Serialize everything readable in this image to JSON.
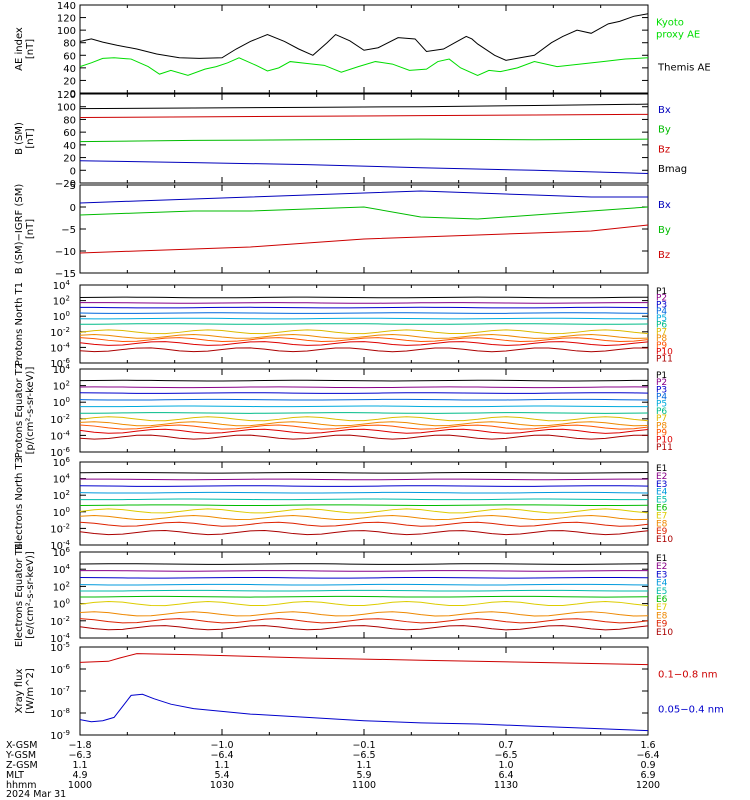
{
  "chart_data": [
    {
      "type": "line",
      "ylabel": "AE index [nT]",
      "ylim": [
        0,
        140
      ],
      "yticks": [
        "0",
        "20",
        "40",
        "60",
        "80",
        "100",
        "120",
        "140"
      ],
      "yscale": "linear",
      "legend": [
        {
          "text": "Kyoto proxy AE",
          "color": "#00dd00"
        },
        {
          "text": "Themis AE",
          "color": "#000000"
        }
      ],
      "series": [
        {
          "name": "Themis AE",
          "color": "#000000",
          "x": [
            0,
            4,
            8,
            13,
            20,
            27,
            35,
            42,
            50,
            55,
            60,
            66,
            72,
            77,
            82,
            87,
            90,
            95,
            100,
            105,
            112,
            118,
            122,
            128,
            132,
            136,
            138,
            140,
            146,
            150,
            155,
            160,
            166,
            170,
            175,
            180,
            186,
            190,
            195,
            200
          ],
          "y": [
            82,
            86,
            81,
            76,
            70,
            62,
            56,
            55,
            56,
            70,
            82,
            93,
            82,
            70,
            60,
            80,
            93,
            83,
            68,
            72,
            88,
            86,
            66,
            70,
            80,
            90,
            86,
            78,
            60,
            52,
            56,
            60,
            80,
            90,
            100,
            95,
            110,
            114,
            122,
            126
          ]
        },
        {
          "name": "Kyoto proxy AE",
          "color": "#00dd00",
          "x": [
            0,
            4,
            8,
            12,
            18,
            24,
            28,
            32,
            38,
            44,
            48,
            52,
            56,
            62,
            66,
            70,
            74,
            80,
            86,
            92,
            98,
            104,
            110,
            116,
            122,
            126,
            130,
            134,
            140,
            144,
            148,
            154,
            160,
            168,
            176,
            184,
            192,
            200
          ],
          "y": [
            42,
            48,
            55,
            56,
            54,
            42,
            30,
            36,
            28,
            38,
            42,
            48,
            56,
            44,
            35,
            40,
            50,
            47,
            44,
            33,
            42,
            50,
            46,
            36,
            38,
            50,
            54,
            40,
            28,
            36,
            34,
            40,
            50,
            42,
            46,
            50,
            54,
            56
          ]
        }
      ]
    },
    {
      "type": "line",
      "ylabel": "B (SM) [nT]",
      "ylim": [
        -20,
        120
      ],
      "yticks": [
        "−20",
        "0",
        "20",
        "40",
        "60",
        "80",
        "100",
        "120"
      ],
      "yscale": "linear",
      "legend": [
        {
          "text": "Bx",
          "color": "#0000bb"
        },
        {
          "text": "By",
          "color": "#00bb00"
        },
        {
          "text": "Bz",
          "color": "#cc0000"
        },
        {
          "text": "Bmag",
          "color": "#000000"
        }
      ],
      "series": [
        {
          "name": "Bmag",
          "color": "#000000",
          "x": [
            0,
            40,
            80,
            120,
            160,
            200
          ],
          "y": [
            97,
            98,
            99,
            100,
            102,
            104
          ]
        },
        {
          "name": "Bz",
          "color": "#cc0000",
          "x": [
            0,
            40,
            80,
            120,
            160,
            200
          ],
          "y": [
            83,
            84,
            85,
            86,
            87,
            88
          ]
        },
        {
          "name": "By",
          "color": "#00bb00",
          "x": [
            0,
            40,
            80,
            120,
            160,
            200
          ],
          "y": [
            45,
            47,
            48,
            49,
            48,
            49
          ]
        },
        {
          "name": "Bx",
          "color": "#0000bb",
          "x": [
            0,
            40,
            80,
            120,
            160,
            200
          ],
          "y": [
            15,
            12,
            9,
            4,
            0,
            -5
          ]
        }
      ]
    },
    {
      "type": "line",
      "ylabel": "B (SM)−IGRF (SM) [nT]",
      "ylim": [
        -15,
        7
      ],
      "yticks": [
        "−15",
        "−10",
        "−5",
        "0",
        "5"
      ],
      "yscale": "linear",
      "legend": [
        {
          "text": "Bx",
          "color": "#0000bb"
        },
        {
          "text": "By",
          "color": "#00bb00"
        },
        {
          "text": "Bz",
          "color": "#cc0000"
        }
      ],
      "series": [
        {
          "name": "Bx",
          "color": "#0000bb",
          "x": [
            0,
            20,
            40,
            60,
            80,
            100,
            120,
            140,
            160,
            180,
            200
          ],
          "y": [
            2.5,
            3,
            3.5,
            4,
            4.5,
            5,
            5.5,
            5,
            4.5,
            4,
            4
          ]
        },
        {
          "name": "By",
          "color": "#00bb00",
          "x": [
            0,
            20,
            40,
            60,
            80,
            100,
            120,
            140,
            160,
            180,
            200
          ],
          "y": [
            -0.5,
            0,
            0.5,
            0.5,
            1,
            1.5,
            -1,
            -1.5,
            -0.5,
            0.5,
            1.5
          ]
        },
        {
          "name": "Bz",
          "color": "#cc0000",
          "x": [
            0,
            20,
            40,
            60,
            80,
            100,
            120,
            140,
            160,
            180,
            200
          ],
          "y": [
            -10,
            -9.5,
            -9,
            -8.5,
            -7.5,
            -6.5,
            -6,
            -5.5,
            -5,
            -4.5,
            -3
          ]
        }
      ]
    },
    {
      "type": "line",
      "ylabel": "Protons North T1",
      "ylim": [
        -6,
        4
      ],
      "yticks": [
        "10^-6",
        "10^-4",
        "10^-2",
        "10^0",
        "10^2",
        "10^4"
      ],
      "yscale": "log",
      "legend": [
        {
          "text": "P1",
          "color": "#000000"
        },
        {
          "text": "P2",
          "color": "#880088"
        },
        {
          "text": "P3",
          "color": "#0000cc"
        },
        {
          "text": "P4",
          "color": "#0066dd"
        },
        {
          "text": "P5",
          "color": "#00aadd"
        },
        {
          "text": "P6",
          "color": "#00bb88"
        },
        {
          "text": "P7",
          "color": "#ddbb00"
        },
        {
          "text": "P8",
          "color": "#ee8800"
        },
        {
          "text": "P9",
          "color": "#ff5500"
        },
        {
          "text": "P10",
          "color": "#dd0000"
        },
        {
          "text": "P11",
          "color": "#aa0000"
        }
      ],
      "levels": [
        2.4,
        1.7,
        1.1,
        0.4,
        -0.3,
        -1.0,
        -2.0,
        -2.6,
        -3.0,
        -3.5,
        -4.3
      ]
    },
    {
      "type": "line",
      "ylabel": "Protons Equator T2 [p/(cm²-s-sr-keV)]",
      "ylim": [
        -6,
        4
      ],
      "yticks": [
        "10^-6",
        "10^-4",
        "10^-2",
        "10^0",
        "10^2",
        "10^4"
      ],
      "yscale": "log",
      "legend": [
        {
          "text": "P1",
          "color": "#000000"
        },
        {
          "text": "P2",
          "color": "#880088"
        },
        {
          "text": "P3",
          "color": "#0000cc"
        },
        {
          "text": "P4",
          "color": "#0066dd"
        },
        {
          "text": "P5",
          "color": "#00aadd"
        },
        {
          "text": "P6",
          "color": "#00bb88"
        },
        {
          "text": "P7",
          "color": "#ddbb00"
        },
        {
          "text": "P8",
          "color": "#ee8800"
        },
        {
          "text": "P9",
          "color": "#ff5500"
        },
        {
          "text": "P10",
          "color": "#dd0000"
        },
        {
          "text": "P11",
          "color": "#aa0000"
        }
      ],
      "levels": [
        2.6,
        1.8,
        1.1,
        0.3,
        -0.5,
        -1.3,
        -2.0,
        -2.6,
        -3.0,
        -3.5,
        -4.2
      ]
    },
    {
      "type": "line",
      "ylabel": "Electrons North T3",
      "ylim": [
        -4,
        6
      ],
      "yticks": [
        "10^-4",
        "10^-2",
        "10^0",
        "10^2",
        "10^4",
        "10^6"
      ],
      "yscale": "log",
      "legend": [
        {
          "text": "E1",
          "color": "#000000"
        },
        {
          "text": "E2",
          "color": "#880088"
        },
        {
          "text": "E3",
          "color": "#0000cc"
        },
        {
          "text": "E4",
          "color": "#0099dd"
        },
        {
          "text": "E5",
          "color": "#00bbaa"
        },
        {
          "text": "E6",
          "color": "#00bb00"
        },
        {
          "text": "E7",
          "color": "#ddcc00"
        },
        {
          "text": "E8",
          "color": "#ee8800"
        },
        {
          "text": "E9",
          "color": "#dd2200"
        },
        {
          "text": "E10",
          "color": "#aa0000"
        }
      ],
      "levels": [
        4.7,
        3.9,
        3.1,
        2.3,
        1.5,
        0.8,
        0.1,
        -0.7,
        -1.5,
        -2.5
      ]
    },
    {
      "type": "line",
      "ylabel": "Electrons Equator T4 [e/(cm²-s-sr-keV)]",
      "ylim": [
        -4,
        6
      ],
      "yticks": [
        "10^-4",
        "10^-2",
        "10^0",
        "10^2",
        "10^4",
        "10^6"
      ],
      "yscale": "log",
      "legend": [
        {
          "text": "E1",
          "color": "#000000"
        },
        {
          "text": "E2",
          "color": "#880088"
        },
        {
          "text": "E3",
          "color": "#0000cc"
        },
        {
          "text": "E4",
          "color": "#0099dd"
        },
        {
          "text": "E5",
          "color": "#00bbaa"
        },
        {
          "text": "E6",
          "color": "#00bb00"
        },
        {
          "text": "E7",
          "color": "#ddcc00"
        },
        {
          "text": "E8",
          "color": "#ee8800"
        },
        {
          "text": "E9",
          "color": "#dd2200"
        },
        {
          "text": "E10",
          "color": "#aa0000"
        }
      ],
      "levels": [
        4.6,
        3.8,
        3.0,
        2.2,
        1.5,
        0.8,
        0.0,
        -1.2,
        -2.0,
        -2.8
      ]
    },
    {
      "type": "line",
      "ylabel": "Xray flux [W/m^2]",
      "ylim": [
        -9,
        -5
      ],
      "yticks": [
        "10^-9",
        "10^-8",
        "10^-7",
        "10^-6",
        "10^-5"
      ],
      "yscale": "log",
      "legend": [
        {
          "text": "0.1−0.8 nm",
          "color": "#cc0000"
        },
        {
          "text": "0.05−0.4 nm",
          "color": "#0000cc"
        }
      ],
      "series": [
        {
          "name": "0.1−0.8 nm",
          "color": "#cc0000",
          "x": [
            0,
            10,
            14,
            20,
            40,
            80,
            120,
            160,
            200
          ],
          "y": [
            -5.7,
            -5.65,
            -5.5,
            -5.3,
            -5.35,
            -5.5,
            -5.6,
            -5.7,
            -5.8
          ]
        },
        {
          "name": "0.05−0.4 nm",
          "color": "#0000cc",
          "x": [
            0,
            4,
            8,
            12,
            15,
            18,
            22,
            26,
            32,
            40,
            60,
            80,
            100,
            120,
            140,
            160,
            180,
            190,
            200
          ],
          "y": [
            -8.3,
            -8.4,
            -8.35,
            -8.2,
            -7.7,
            -7.2,
            -7.15,
            -7.35,
            -7.6,
            -7.8,
            -8.05,
            -8.2,
            -8.35,
            -8.45,
            -8.5,
            -8.6,
            -8.7,
            -8.75,
            -8.8
          ]
        }
      ]
    }
  ],
  "xaxis": {
    "range_minutes": [
      0,
      120
    ],
    "row_labels": [
      "X-GSM",
      "Y-GSM",
      "Z-GSM",
      "MLT",
      "hhmm",
      "2024 Mar 31"
    ],
    "ticks": [
      {
        "x_min": 0,
        "xgsm": "−1.8",
        "ygsm": "−6.3",
        "zgsm": "1.1",
        "mlt": "4.9",
        "hhmm": "1000"
      },
      {
        "x_min": 30,
        "xgsm": "−1.0",
        "ygsm": "−6.4",
        "zgsm": "1.1",
        "mlt": "5.4",
        "hhmm": "1030"
      },
      {
        "x_min": 60,
        "xgsm": "−0.1",
        "ygsm": "−6.5",
        "zgsm": "1.1",
        "mlt": "5.9",
        "hhmm": "1100"
      },
      {
        "x_min": 90,
        "xgsm": "0.7",
        "ygsm": "−6.5",
        "zgsm": "1.0",
        "mlt": "6.4",
        "hhmm": "1130"
      },
      {
        "x_min": 120,
        "xgsm": "1.6",
        "ygsm": "−6.4",
        "zgsm": "0.9",
        "mlt": "6.9",
        "hhmm": "1200"
      }
    ]
  }
}
